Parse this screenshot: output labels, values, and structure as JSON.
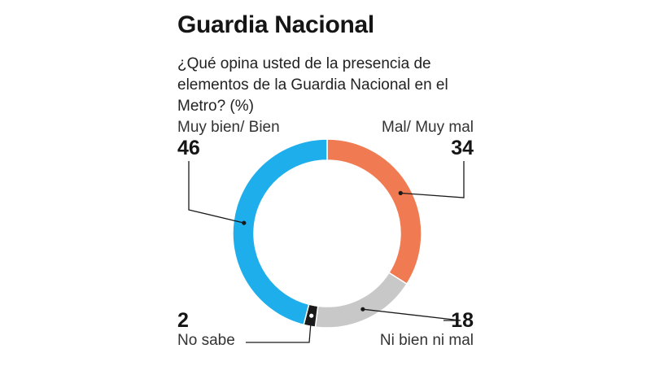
{
  "header": {
    "title": "Guardia Nacional",
    "subtitle": "¿Qué opina usted de la presencia de elementos de la Guardia Nacional en el Metro? (%)"
  },
  "chart_data": {
    "type": "pie",
    "variant": "donut",
    "title": "Guardia Nacional",
    "subtitle": "¿Qué opina usted de la presencia de elementos de la Guardia Nacional en el Metro? (%)",
    "unit": "%",
    "slices": [
      {
        "label": "Mal/ Muy mal",
        "value": 34,
        "display": "34",
        "color": "#f07a52"
      },
      {
        "label": "Ni bien ni mal",
        "value": 18,
        "display": "18",
        "color": "#c8c8c8"
      },
      {
        "label": "No sabe",
        "value": 2,
        "display": "2",
        "color": "#1a1a1a"
      },
      {
        "label": "Muy bien/ Bien",
        "value": 46,
        "display": "46",
        "color": "#1eaeec"
      }
    ]
  }
}
